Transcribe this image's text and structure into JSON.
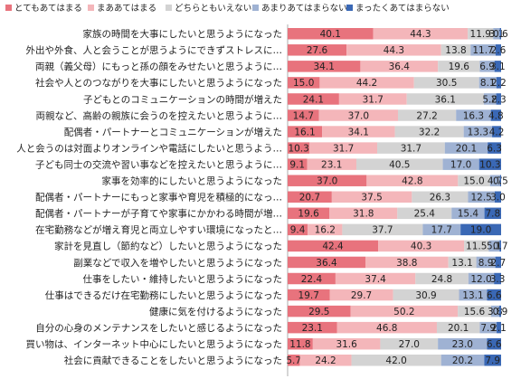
{
  "chart_data": {
    "type": "bar",
    "orientation": "horizontal",
    "stacked": "100%",
    "legend_position": "top",
    "colors": [
      "#e8737d",
      "#f4b6ba",
      "#d3d3d3",
      "#9fb2d3",
      "#3a68b5"
    ],
    "series": [
      {
        "name": "とてもあてはまる"
      },
      {
        "name": "まああてはまる"
      },
      {
        "name": "どちらともいえない"
      },
      {
        "name": "あまりあてはまらない"
      },
      {
        "name": "まったくあてはまらない"
      }
    ],
    "categories": [
      "家族の時間を大事にしたいと思うようになった",
      "外出や外食、人と会うことが思うようにできずストレスに…",
      "両親（義父母）にもっと孫の顔をみせたいと思うように…",
      "社会や人とのつながりを大事にしたいと思うようになった",
      "子どもとのコミュニケーションの時間が増えた",
      "両親など、高齢の親族に会うのを控えたいと思うように…",
      "配偶者・パートナーとコミュニケーションが増えた",
      "人と会うのは対面よりオンラインや電話にしたいと思うよう…",
      "子ども同士の交流や習い事などを控えたいと思うように…",
      "家事を効率的にしたいと思うようになった",
      "配偶者・パートナーにもっと家事や育児を積極的になっ…",
      "配偶者・パートナーが子育てや家事にかかわる時間が増…",
      "在宅勤務などが増え育児と両立しやすい環境になったと…",
      "家計を見直し（節約など）したいと思うようになった",
      "副業などで収入を増やしたいと思うようになった",
      "仕事をしたい・維持したいと思うようになった",
      "仕事はできるだけ在宅勤務にしたいと思うようになった",
      "健康に気を付けるようになった",
      "自分の心身のメンテナンスをしたいと感じるようになった",
      "買い物は、インターネット中心にしたいと思うようになった",
      "社会に貢献できることをしたいと思うようになった"
    ],
    "values": [
      [
        40.1,
        44.3,
        11.9,
        3.1,
        0.6
      ],
      [
        27.6,
        44.3,
        13.8,
        11.7,
        2.6
      ],
      [
        34.1,
        36.4,
        19.6,
        6.9,
        3.1
      ],
      [
        15.0,
        44.2,
        30.5,
        8.1,
        2.2
      ],
      [
        24.1,
        31.7,
        36.1,
        5.8,
        2.3
      ],
      [
        14.7,
        37.0,
        27.2,
        16.3,
        4.8
      ],
      [
        16.1,
        34.1,
        32.2,
        13.3,
        4.2
      ],
      [
        10.3,
        31.7,
        31.7,
        20.1,
        6.3
      ],
      [
        9.1,
        23.1,
        40.5,
        17.0,
        10.3
      ],
      [
        37.0,
        42.8,
        15.0,
        4.7,
        0.5
      ],
      [
        20.7,
        37.5,
        26.3,
        12.5,
        3.0
      ],
      [
        19.6,
        31.8,
        25.4,
        15.4,
        7.8
      ],
      [
        9.4,
        16.2,
        37.7,
        17.7,
        19.0
      ],
      [
        42.4,
        40.3,
        11.5,
        5.1,
        0.7
      ],
      [
        36.4,
        38.8,
        13.1,
        8.9,
        2.7
      ],
      [
        22.4,
        37.4,
        24.8,
        12.0,
        3.3
      ],
      [
        19.7,
        29.7,
        30.9,
        13.1,
        6.6
      ],
      [
        29.5,
        50.2,
        15.6,
        3.8,
        0.9
      ],
      [
        23.1,
        46.8,
        20.1,
        7.9,
        2.1
      ],
      [
        11.8,
        31.6,
        27.0,
        23.0,
        6.6
      ],
      [
        5.7,
        24.2,
        42.0,
        20.2,
        7.9
      ]
    ]
  }
}
